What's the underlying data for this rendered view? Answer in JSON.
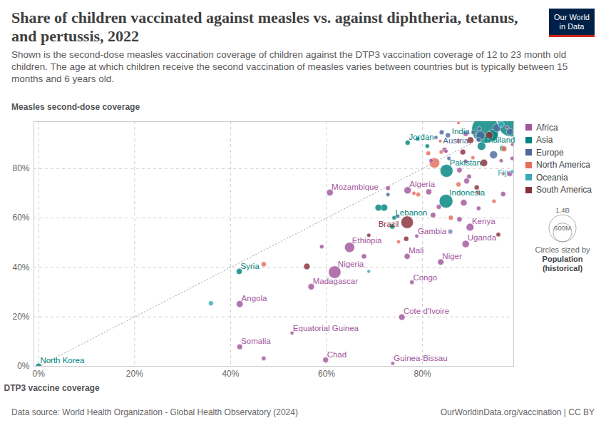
{
  "chart_data": {
    "type": "scatter",
    "title": "Share of children vaccinated against measles vs. against diphtheria, tetanus, and pertussis, 2022",
    "subtitle": "Shown is the second-dose measles vaccination coverage of children against the DTP3 vaccination coverage of 12 to 23 month old children. The age at which children receive the second vaccination of measles varies between countries but is typically between 15 months and 6 years old.",
    "x_label": "DTP3 vaccine coverage",
    "y_label": "Measles second-dose coverage",
    "xlim": [
      -1,
      99
    ],
    "ylim": [
      0,
      99
    ],
    "xticks": [
      {
        "value": 0,
        "label": "0%"
      },
      {
        "value": 20,
        "label": "20%"
      },
      {
        "value": 40,
        "label": "40%"
      },
      {
        "value": 60,
        "label": "60%"
      },
      {
        "value": 80,
        "label": "80%"
      }
    ],
    "yticks": [
      {
        "value": 0,
        "label": "0%"
      },
      {
        "value": 20,
        "label": "20%"
      },
      {
        "value": 40,
        "label": "40%"
      },
      {
        "value": 60,
        "label": "60%"
      },
      {
        "value": 80,
        "label": "80%"
      }
    ],
    "grid": true,
    "legend": "right",
    "series": [
      {
        "name": "Africa",
        "color": "#a2559c",
        "x": [
          41.9,
          41.9,
          56.8,
          61.7,
          64.8,
          60.7,
          76.9,
          78.8,
          76.8,
          77.8,
          75.7,
          52.8,
          59.8,
          73.8,
          89.9,
          89.0,
          83.8,
          46.9,
          59.0,
          67.8,
          72.8,
          81.3,
          82.2,
          83.4,
          87.7,
          85.8,
          88.6,
          91.7,
          96.8,
          89.2,
          87.7,
          89.7,
          89.0,
          84.6,
          81.8,
          84.9,
          89.0,
          97.6,
          98.7,
          98.7,
          98.2,
          96.4
        ],
        "y": [
          7.9,
          25.2,
          32.2,
          38.1,
          48.1,
          70.3,
          71.2,
          52.7,
          44.5,
          34.0,
          19.9,
          13.5,
          2.6,
          1.2,
          56.3,
          49.5,
          42.2,
          3.2,
          48.4,
          44.5,
          72.1,
          70.6,
          61.2,
          64.5,
          59.5,
          54.5,
          66.2,
          63.9,
          69.7,
          75.0,
          79.4,
          76.8,
          82.9,
          87.6,
          83.2,
          87.0,
          94.1,
          96.7,
          89.7,
          84.1,
          77.9,
          83.2
        ],
        "size": [
          17600000,
          35600000,
          29600000,
          218500000,
          123400000,
          33000000,
          44900000,
          2700000,
          22600000,
          6000000,
          28200000,
          1700000,
          17700000,
          2100000,
          54000000,
          47200000,
          26200000,
          5600000,
          5000000,
          12000000,
          8000000,
          20000000,
          15000000,
          10000000,
          13000000,
          9000000,
          31000000,
          6000000,
          12000000,
          19000000,
          14000000,
          8000000,
          5000000,
          11000000,
          4000000,
          3000000,
          13000000,
          2000000,
          1000000,
          4000000,
          16000000,
          3000000
        ],
        "labels": [
          "Somalia",
          "Angola",
          "Madagascar",
          "Nigeria",
          "Ethiopia",
          "Mozambique",
          "Algeria",
          "Gambia",
          "Mali",
          "Congo",
          "Cote d'Ivoire",
          "Equatorial Guinea",
          "Chad",
          "Guinea-Bissau",
          "Kenya",
          "Uganda",
          "Niger",
          null,
          null,
          null,
          null,
          null,
          null,
          null,
          null,
          null,
          null,
          null,
          null,
          null,
          null,
          null,
          null,
          null,
          null,
          null,
          null,
          null,
          null,
          null,
          null,
          null
        ]
      },
      {
        "name": "Asia",
        "color": "#00847e",
        "x": [
          0,
          41.8,
          74.1,
          84.9,
          85.0,
          76.9,
          93.1,
          92.3,
          98.5,
          72.0,
          70.8,
          73.7,
          96.7,
          81.0,
          79.0,
          92.0,
          94.6
        ],
        "y": [
          0,
          38.4,
          60.1,
          66.8,
          79.1,
          90.5,
          95.8,
          89.1,
          98.5,
          64.2,
          64.2,
          56.6,
          88.2,
          89.1,
          92.0,
          92.9,
          93.5
        ],
        "size": [
          26000000,
          22000000,
          5500000,
          275000000,
          235000000,
          11300000,
          1417000000,
          71700000,
          1425000000,
          40000000,
          35000000,
          15000000,
          20000000,
          5000000,
          4000000,
          100000000,
          170000000
        ],
        "labels": [
          "North Korea",
          "Syria",
          "Lebanon",
          "Indonesia",
          "Pakistan",
          "Jordan",
          "India",
          "Thailand",
          null,
          null,
          null,
          null,
          null,
          null,
          null,
          null,
          null
        ]
      },
      {
        "name": "Europe",
        "color": "#4c6a9c",
        "x": [
          84.0,
          72.8,
          74.8,
          91.7,
          91.8,
          94.8,
          92.1,
          98.2,
          82.8,
          85.3,
          90.6,
          85.5,
          95.5
        ],
        "y": [
          94.7,
          69.5,
          60.7,
          91.7,
          96.1,
          85.6,
          93.5,
          94.9,
          92.6,
          93.5,
          94.7,
          84.1,
          96.5
        ],
        "size": [
          9000000,
          3200000,
          2800000,
          10000000,
          5000000,
          60000000,
          84000000,
          38000000,
          2000000,
          11000000,
          7000000,
          3000000,
          67000000
        ],
        "labels": [
          "Austria",
          null,
          null,
          null,
          null,
          null,
          null,
          null,
          null,
          null,
          null,
          null,
          null
        ]
      },
      {
        "name": "North America",
        "color": "#e56e5a",
        "x": [
          46.9,
          75.0,
          78.2,
          79.1,
          85.9,
          94.9,
          91.6,
          82.5,
          81.2,
          83.7,
          87.5,
          90.5,
          97.0,
          96.8,
          87.5,
          83.9,
          87.5
        ],
        "y": [
          41.3,
          50.4,
          70.0,
          69.5,
          60.1,
          66.8,
          70.3,
          82.3,
          86.2,
          91.1,
          91.1,
          84.4,
          88.0,
          77.9,
          98.5,
          86.7,
          73.6
        ],
        "size": [
          11500000,
          2000000,
          3000000,
          6000000,
          10000000,
          4000000,
          6000000,
          127000000,
          7000000,
          1000000,
          5000000,
          2500000,
          17000000,
          1000000,
          500000,
          3500000,
          10500000
        ],
        "labels": [
          null,
          null,
          null,
          null,
          null,
          null,
          null,
          null,
          null,
          null,
          null,
          null,
          null,
          null,
          null,
          null,
          null
        ]
      },
      {
        "name": "Oceania",
        "color": "#38aaba",
        "x": [
          98.7,
          35.9,
          68.8,
          85.9,
          96.4
        ],
        "y": [
          78.8,
          25.5,
          38.4,
          54.5,
          97.9
        ],
        "size": [
          930000,
          10000000,
          1000000,
          300000,
          26000000
        ],
        "labels": [
          "Fiji",
          null,
          null,
          null,
          null
        ]
      },
      {
        "name": "South America",
        "color": "#883039",
        "x": [
          76.8,
          55.9,
          68.8,
          76.6,
          95.8,
          91.3,
          88.4,
          93.9,
          92.8,
          90.0
        ],
        "y": [
          58.3,
          40.4,
          53.0,
          51.6,
          53.3,
          72.4,
          86.7,
          93.5,
          82.3,
          91.5
        ],
        "size": [
          215000000,
          28000000,
          3000000,
          12000000,
          7000000,
          11000000,
          19000000,
          52000000,
          46000000,
          34000000
        ],
        "labels": [
          "Brazil",
          null,
          null,
          null,
          null,
          null,
          null,
          null,
          null,
          null
        ]
      }
    ],
    "size_legend": {
      "title": "Circles sized by",
      "label": "Population (historical)",
      "values": [
        {
          "value": 1400000000,
          "label": "1.4B"
        },
        {
          "value": 600000000,
          "label": "600M"
        }
      ]
    },
    "source": "Data source: World Health Organization - Global Health Observatory (2024)",
    "footer_right": "OurWorldinData.org/vaccination | CC BY",
    "logo": "Our World in Data"
  }
}
